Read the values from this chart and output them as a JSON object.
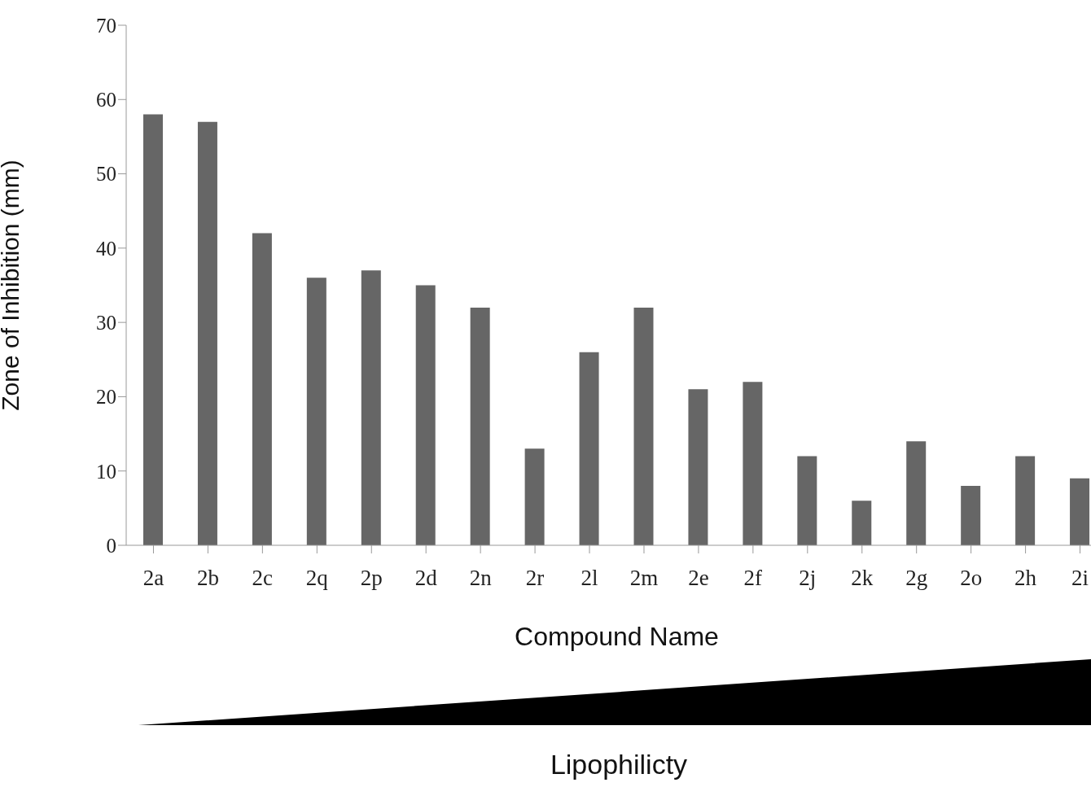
{
  "chart_data": {
    "type": "bar",
    "xlabel": "Compound Name",
    "ylabel": "Zone of Inhibition (mm)",
    "categories": [
      "2a",
      "2b",
      "2c",
      "2q",
      "2p",
      "2d",
      "2n",
      "2r",
      "2l",
      "2m",
      "2e",
      "2f",
      "2j",
      "2k",
      "2g",
      "2o",
      "2h",
      "2i"
    ],
    "values": [
      58,
      57,
      42,
      36,
      37,
      35,
      32,
      13,
      26,
      32,
      21,
      22,
      12,
      6,
      14,
      8,
      12,
      9
    ],
    "color": "#666666",
    "ylim": [
      0,
      70
    ],
    "yticks": [
      0,
      10,
      20,
      30,
      40,
      50,
      60,
      70
    ],
    "grid": false,
    "legend": false,
    "annotations": [
      "Lipophilicty"
    ]
  }
}
